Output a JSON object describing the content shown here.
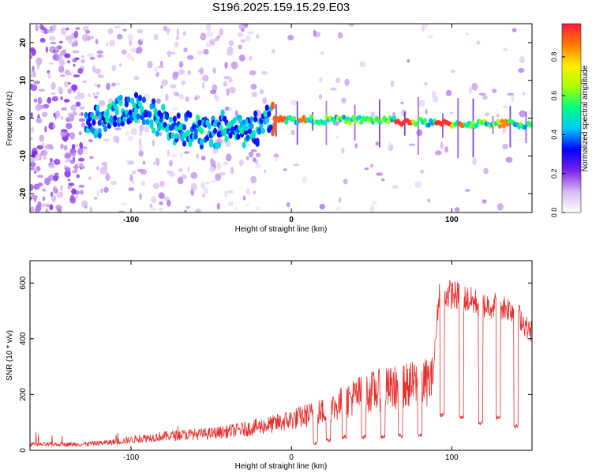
{
  "title": "S196.2025.159.15.29.E03",
  "chart_data": [
    {
      "type": "heatmap",
      "xlabel": "Height of straight line (km)",
      "ylabel": "Frequency (Hz)",
      "xlim": [
        -163,
        150
      ],
      "ylim": [
        -25,
        25
      ],
      "xticks": [
        -100,
        0,
        100
      ],
      "yticks": [
        -20,
        -10,
        0,
        10,
        20
      ],
      "colorbar": {
        "label": "Normalized spectral amplitude",
        "range": [
          0,
          0.97
        ],
        "ticks": [
          0,
          0.2,
          0.4,
          0.6,
          0.8
        ],
        "colors": [
          "#ffffff",
          "#d8b8f0",
          "#7a20e8",
          "#0000ff",
          "#00c8ff",
          "#00ff80",
          "#aaff00",
          "#ffee00",
          "#ff7a00",
          "#ff1a40"
        ]
      },
      "ridge": {
        "description_free_trace": true,
        "points": [
          [
            -125,
            -1.5
          ],
          [
            -110,
            1.0
          ],
          [
            -95,
            2.5
          ],
          [
            -85,
            0.5
          ],
          [
            -75,
            -2.5
          ],
          [
            -60,
            -3.0
          ],
          [
            -50,
            -4.5
          ],
          [
            -40,
            -2.0
          ],
          [
            -30,
            -3.5
          ],
          [
            -20,
            -2.5
          ],
          [
            -15,
            0.5
          ],
          [
            -10,
            0.0
          ],
          [
            0,
            -0.5
          ],
          [
            20,
            -0.5
          ],
          [
            40,
            -0.5
          ],
          [
            60,
            -0.5
          ],
          [
            70,
            -1.0
          ],
          [
            80,
            -1.0
          ],
          [
            90,
            -1.5
          ],
          [
            100,
            -1.5
          ],
          [
            110,
            -1.5
          ],
          [
            120,
            -1.5
          ],
          [
            130,
            -1.5
          ],
          [
            140,
            -1.5
          ],
          [
            148,
            -2.0
          ]
        ],
        "peak_amplitude_segments": [
          {
            "x": [
              -12,
              -4
            ],
            "value": 0.92
          },
          {
            "x": [
              5,
              10
            ],
            "value": 0.9
          },
          {
            "x": [
              65,
              75
            ],
            "value": 0.97
          },
          {
            "x": [
              90,
              100
            ],
            "value": 0.97
          },
          {
            "x": [
              104,
              108
            ],
            "value": 0.92
          },
          {
            "x": [
              130,
              135
            ],
            "value": 0.88
          }
        ]
      }
    },
    {
      "type": "line",
      "xlabel": "Height of straight line (km)",
      "ylabel": "SNR (10 * v/v)",
      "xlim": [
        -163,
        150
      ],
      "ylim": [
        0,
        680
      ],
      "xticks": [
        -100,
        0,
        100
      ],
      "yticks": [
        0,
        200,
        400,
        600
      ],
      "series_color": "#e8302e",
      "baseline": [
        [
          -163,
          20
        ],
        [
          -130,
          22
        ],
        [
          -110,
          30
        ],
        [
          -90,
          45
        ],
        [
          -70,
          55
        ],
        [
          -50,
          60
        ],
        [
          -30,
          75
        ],
        [
          -10,
          95
        ],
        [
          0,
          110
        ],
        [
          10,
          125
        ],
        [
          20,
          140
        ],
        [
          30,
          165
        ],
        [
          40,
          195
        ],
        [
          50,
          210
        ],
        [
          60,
          220
        ],
        [
          70,
          230
        ],
        [
          80,
          240
        ],
        [
          88,
          250
        ],
        [
          92,
          560
        ],
        [
          100,
          560
        ],
        [
          110,
          540
        ],
        [
          120,
          520
        ],
        [
          130,
          520
        ],
        [
          140,
          500
        ],
        [
          148,
          430
        ]
      ],
      "dips": [
        {
          "x": 15,
          "value": 20
        },
        {
          "x": 23,
          "value": 30
        },
        {
          "x": 33,
          "value": 40
        },
        {
          "x": 45,
          "value": 40
        },
        {
          "x": 57,
          "value": 40
        },
        {
          "x": 68,
          "value": 45
        },
        {
          "x": 80,
          "value": 45
        },
        {
          "x": 94,
          "value": 120
        },
        {
          "x": 106,
          "value": 110
        },
        {
          "x": 118,
          "value": 90
        },
        {
          "x": 129,
          "value": 110
        },
        {
          "x": 140,
          "value": 80
        }
      ],
      "max": 680
    }
  ]
}
